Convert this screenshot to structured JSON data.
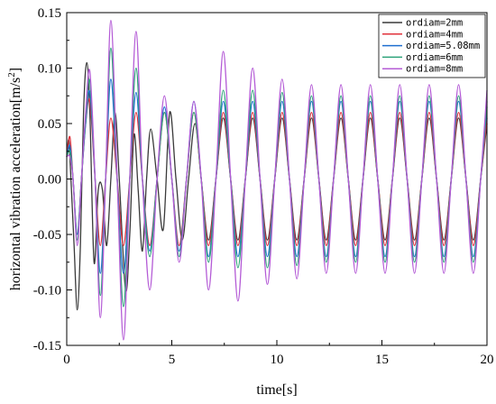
{
  "chart_data": {
    "type": "line",
    "xlabel": "time[s]",
    "ylabel_main": "horizontal vibration acceleration[m/s",
    "ylabel_sup": "2",
    "ylabel_end": "]",
    "xlim": [
      0,
      20
    ],
    "ylim": [
      -0.15,
      0.15
    ],
    "xticks": [
      0,
      5,
      10,
      15,
      20
    ],
    "xtick_labels": [
      "0",
      "5",
      "10",
      "15",
      "20"
    ],
    "yticks": [
      -0.15,
      -0.1,
      -0.05,
      0.0,
      0.05,
      0.1,
      0.15
    ],
    "ytick_labels": [
      "-0.15",
      "-0.10",
      "-0.05",
      "0.00",
      "0.05",
      "0.10",
      "0.15"
    ],
    "grid": false,
    "legend_position": "top-right",
    "series": [
      {
        "name": "ordiam=2mm",
        "color": "#3a3a3a",
        "x": [
          0,
          0.1,
          0.2,
          0.35,
          0.5,
          0.65,
          0.8,
          0.95,
          1.1,
          1.3,
          1.5,
          1.7,
          1.9,
          2.1,
          2.3,
          2.5,
          2.8,
          3.0,
          3.2,
          3.4,
          3.6,
          3.8,
          4.0,
          4.3,
          4.6,
          4.9,
          5.2,
          5.5,
          5.8,
          6.1,
          6.4,
          6.75,
          7.1,
          7.45,
          7.8,
          8.15,
          8.5,
          8.85,
          9.2,
          9.55,
          9.9,
          10.25,
          10.6,
          10.95,
          11.3,
          11.65,
          12.0,
          12.35,
          12.7,
          13.05,
          13.4,
          13.75,
          14.1,
          14.45,
          14.8,
          15.15,
          15.5,
          15.85,
          16.2,
          16.55,
          16.9,
          17.25,
          17.6,
          17.95,
          18.3,
          18.65,
          19.0,
          19.35,
          19.7,
          20.0
        ],
        "y": [
          0.02,
          0.035,
          0.0,
          -0.06,
          -0.118,
          -0.06,
          0.06,
          0.105,
          0.06,
          -0.075,
          -0.01,
          -0.01,
          -0.06,
          0.0,
          0.06,
          0.0,
          -0.1,
          -0.05,
          0.04,
          -0.01,
          -0.065,
          0.0,
          0.045,
          0.0,
          -0.045,
          0.06,
          0.0,
          -0.055,
          0.0,
          0.05,
          0.0,
          -0.055,
          0.0,
          0.055,
          0.0,
          -0.055,
          0.0,
          0.055,
          0.0,
          -0.055,
          0.0,
          0.055,
          0.0,
          -0.055,
          0.0,
          0.055,
          0.0,
          -0.055,
          0.0,
          0.055,
          0.0,
          -0.055,
          0.0,
          0.055,
          0.0,
          -0.055,
          0.0,
          0.055,
          0.0,
          -0.055,
          0.0,
          0.055,
          0.0,
          -0.055,
          0.0,
          0.055,
          0.0,
          -0.055,
          0.0,
          0.05
        ]
      },
      {
        "name": "ordiam=4mm",
        "color": "#e0323c",
        "x": [
          0,
          0.15,
          0.3,
          0.5,
          0.7,
          0.9,
          1.1,
          1.35,
          1.6,
          1.85,
          2.1,
          2.4,
          2.7,
          3.0,
          3.3,
          3.6,
          3.95,
          4.3,
          4.65,
          5.0,
          5.35,
          5.7,
          6.05,
          6.4,
          6.75,
          7.1,
          7.45,
          7.8,
          8.15,
          8.5,
          8.85,
          9.2,
          9.55,
          9.9,
          10.25,
          10.6,
          10.95,
          11.3,
          11.65,
          12.0,
          12.35,
          12.7,
          13.05,
          13.4,
          13.75,
          14.1,
          14.45,
          14.8,
          15.15,
          15.5,
          15.85,
          16.2,
          16.55,
          16.9,
          17.25,
          17.6,
          17.95,
          18.3,
          18.65,
          19.0,
          19.35,
          19.7,
          20.0
        ],
        "y": [
          0.02,
          0.038,
          0.0,
          -0.05,
          0.0,
          0.05,
          0.07,
          0.0,
          -0.06,
          0.0,
          0.055,
          0.0,
          -0.06,
          0.0,
          0.06,
          0.0,
          -0.06,
          0.0,
          0.06,
          0.0,
          -0.06,
          0.0,
          0.06,
          0.0,
          -0.06,
          0.0,
          0.06,
          0.0,
          -0.06,
          0.0,
          0.06,
          0.0,
          -0.06,
          0.0,
          0.06,
          0.0,
          -0.06,
          0.0,
          0.06,
          0.0,
          -0.06,
          0.0,
          0.06,
          0.0,
          -0.06,
          0.0,
          0.06,
          0.0,
          -0.06,
          0.0,
          0.06,
          0.0,
          -0.06,
          0.0,
          0.06,
          0.0,
          -0.06,
          0.0,
          0.06,
          0.0,
          -0.06,
          0.0,
          0.055
        ]
      },
      {
        "name": "ordiam=5.08mm",
        "color": "#1f6fd0",
        "x": [
          0,
          0.15,
          0.3,
          0.5,
          0.7,
          0.9,
          1.1,
          1.35,
          1.6,
          1.85,
          2.1,
          2.4,
          2.7,
          3.0,
          3.3,
          3.6,
          3.95,
          4.3,
          4.65,
          5.0,
          5.35,
          5.7,
          6.05,
          6.4,
          6.75,
          7.1,
          7.45,
          7.8,
          8.15,
          8.5,
          8.85,
          9.2,
          9.55,
          9.9,
          10.25,
          10.6,
          10.95,
          11.3,
          11.65,
          12.0,
          12.35,
          12.7,
          13.05,
          13.4,
          13.75,
          14.1,
          14.45,
          14.8,
          15.15,
          15.5,
          15.85,
          16.2,
          16.55,
          16.9,
          17.25,
          17.6,
          17.95,
          18.3,
          18.65,
          19.0,
          19.35,
          19.7,
          20.0
        ],
        "y": [
          0.02,
          0.03,
          0.0,
          -0.05,
          0.0,
          0.05,
          0.078,
          0.0,
          -0.085,
          0.0,
          0.09,
          0.0,
          -0.085,
          0.0,
          0.078,
          0.0,
          -0.065,
          0.0,
          0.065,
          0.0,
          -0.065,
          0.0,
          0.07,
          0.0,
          -0.07,
          0.0,
          0.07,
          0.0,
          -0.07,
          0.0,
          0.07,
          0.0,
          -0.07,
          0.0,
          0.07,
          0.0,
          -0.07,
          0.0,
          0.07,
          0.0,
          -0.07,
          0.0,
          0.07,
          0.0,
          -0.07,
          0.0,
          0.07,
          0.0,
          -0.07,
          0.0,
          0.07,
          0.0,
          -0.07,
          0.0,
          0.07,
          0.0,
          -0.07,
          0.0,
          0.07,
          0.0,
          -0.07,
          0.0,
          0.065
        ]
      },
      {
        "name": "ordiam=6mm",
        "color": "#2ea37a",
        "x": [
          0,
          0.15,
          0.3,
          0.5,
          0.7,
          0.9,
          1.1,
          1.35,
          1.6,
          1.85,
          2.1,
          2.4,
          2.7,
          3.0,
          3.3,
          3.6,
          3.95,
          4.3,
          4.65,
          5.0,
          5.35,
          5.7,
          6.05,
          6.4,
          6.75,
          7.1,
          7.45,
          7.8,
          8.15,
          8.5,
          8.85,
          9.2,
          9.55,
          9.9,
          10.25,
          10.6,
          10.95,
          11.3,
          11.65,
          12.0,
          12.35,
          12.7,
          13.05,
          13.4,
          13.75,
          14.1,
          14.45,
          14.8,
          15.15,
          15.5,
          15.85,
          16.2,
          16.55,
          16.9,
          17.25,
          17.6,
          17.95,
          18.3,
          18.65,
          19.0,
          19.35,
          19.7,
          20.0
        ],
        "y": [
          0.02,
          0.025,
          0.0,
          -0.055,
          0.0,
          0.055,
          0.088,
          0.0,
          -0.105,
          0.0,
          0.118,
          0.0,
          -0.115,
          0.0,
          0.1,
          0.0,
          -0.07,
          0.0,
          0.06,
          0.0,
          -0.07,
          0.0,
          0.06,
          0.0,
          -0.075,
          0.0,
          0.08,
          0.0,
          -0.08,
          0.0,
          0.08,
          0.0,
          -0.08,
          0.0,
          0.078,
          0.0,
          -0.078,
          0.0,
          0.075,
          0.0,
          -0.075,
          0.0,
          0.075,
          0.0,
          -0.075,
          0.0,
          0.075,
          0.0,
          -0.075,
          0.0,
          0.075,
          0.0,
          -0.075,
          0.0,
          0.075,
          0.0,
          -0.075,
          0.0,
          0.075,
          0.0,
          -0.075,
          0.0,
          0.07
        ]
      },
      {
        "name": "ordiam=8mm",
        "color": "#b45bd6",
        "x": [
          0,
          0.15,
          0.3,
          0.5,
          0.7,
          0.9,
          1.1,
          1.35,
          1.6,
          1.85,
          2.1,
          2.4,
          2.7,
          3.0,
          3.3,
          3.6,
          3.95,
          4.3,
          4.65,
          5.0,
          5.35,
          5.7,
          6.05,
          6.4,
          6.75,
          7.1,
          7.45,
          7.8,
          8.15,
          8.5,
          8.85,
          9.2,
          9.55,
          9.9,
          10.25,
          10.6,
          10.95,
          11.3,
          11.65,
          12.0,
          12.35,
          12.7,
          13.05,
          13.4,
          13.75,
          14.1,
          14.45,
          14.8,
          15.15,
          15.5,
          15.85,
          16.2,
          16.55,
          16.9,
          17.25,
          17.6,
          17.95,
          18.3,
          18.65,
          19.0,
          19.35,
          19.7,
          20.0
        ],
        "y": [
          0.02,
          0.02,
          0.0,
          -0.06,
          0.0,
          0.06,
          0.097,
          0.0,
          -0.125,
          0.0,
          0.143,
          0.0,
          -0.145,
          0.0,
          0.133,
          0.0,
          -0.1,
          0.0,
          0.075,
          0.0,
          -0.075,
          0.0,
          0.07,
          0.0,
          -0.1,
          0.0,
          0.115,
          0.0,
          -0.11,
          0.0,
          0.1,
          0.0,
          -0.095,
          0.0,
          0.09,
          0.0,
          -0.09,
          0.0,
          0.085,
          0.0,
          -0.085,
          0.0,
          0.085,
          0.0,
          -0.085,
          0.0,
          0.085,
          0.0,
          -0.085,
          0.0,
          0.085,
          0.0,
          -0.085,
          0.0,
          0.085,
          0.0,
          -0.085,
          0.0,
          0.085,
          0.0,
          -0.085,
          0.0,
          0.08
        ]
      }
    ]
  }
}
